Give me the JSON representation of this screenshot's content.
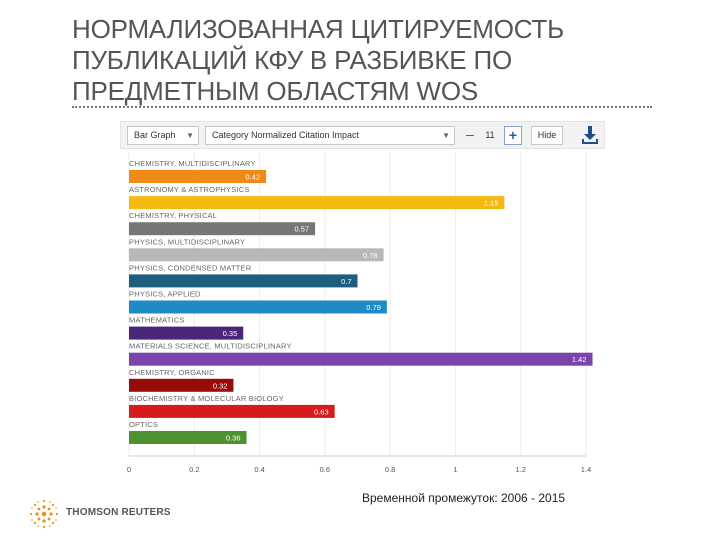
{
  "slide": {
    "title": "НОРМАЛИЗОВАННАЯ ЦИТИРУЕМОСТЬ ПУБЛИКАЦИЙ КФУ В РАЗБИВКЕ ПО ПРЕДМЕТНЫМ ОБЛАСТЯМ WOS"
  },
  "toolbar": {
    "chart_type": "Bar Graph",
    "metric": "Category Normalized Citation Impact",
    "minus": "–",
    "count": "11",
    "plus": "+",
    "hide": "Hide",
    "download_icon": "download-icon"
  },
  "chart_data": {
    "type": "bar",
    "orientation": "horizontal",
    "categories": [
      "CHEMISTRY, MULTIDISCIPLINARY",
      "ASTRONOMY & ASTROPHYSICS",
      "CHEMISTRY, PHYSICAL",
      "PHYSICS, MULTIDISCIPLINARY",
      "PHYSICS, CONDENSED MATTER",
      "PHYSICS, APPLIED",
      "MATHEMATICS",
      "MATERIALS SCIENCE, MULTIDISCIPLINARY",
      "CHEMISTRY, ORGANIC",
      "BIOCHEMISTRY & MOLECULAR BIOLOGY",
      "OPTICS"
    ],
    "values": [
      0.42,
      1.15,
      0.57,
      0.78,
      0.7,
      0.79,
      0.35,
      1.42,
      0.32,
      0.63,
      0.36
    ],
    "value_labels": [
      "0.42",
      "1.15",
      "0.57",
      "0.78",
      "0.7",
      "0.79",
      "0.35",
      "1.42",
      "0.32",
      "0.63",
      "0.36"
    ],
    "colors": [
      "#f08a16",
      "#f6b911",
      "#777777",
      "#b8b8b8",
      "#1d5d7d",
      "#1e8ac6",
      "#4a2677",
      "#7b44aa",
      "#970b0b",
      "#d51b1b",
      "#4d9130"
    ],
    "xlim": [
      0,
      1.4
    ],
    "xticks": [
      "0",
      "0.2",
      "0.4",
      "0.6",
      "0.8",
      "1",
      "1.2",
      "1.4"
    ],
    "grid": true
  },
  "footer": {
    "logo_text": "THOMSON REUTERS",
    "timeframe": "Временной промежуток: 2006 - 2015"
  }
}
